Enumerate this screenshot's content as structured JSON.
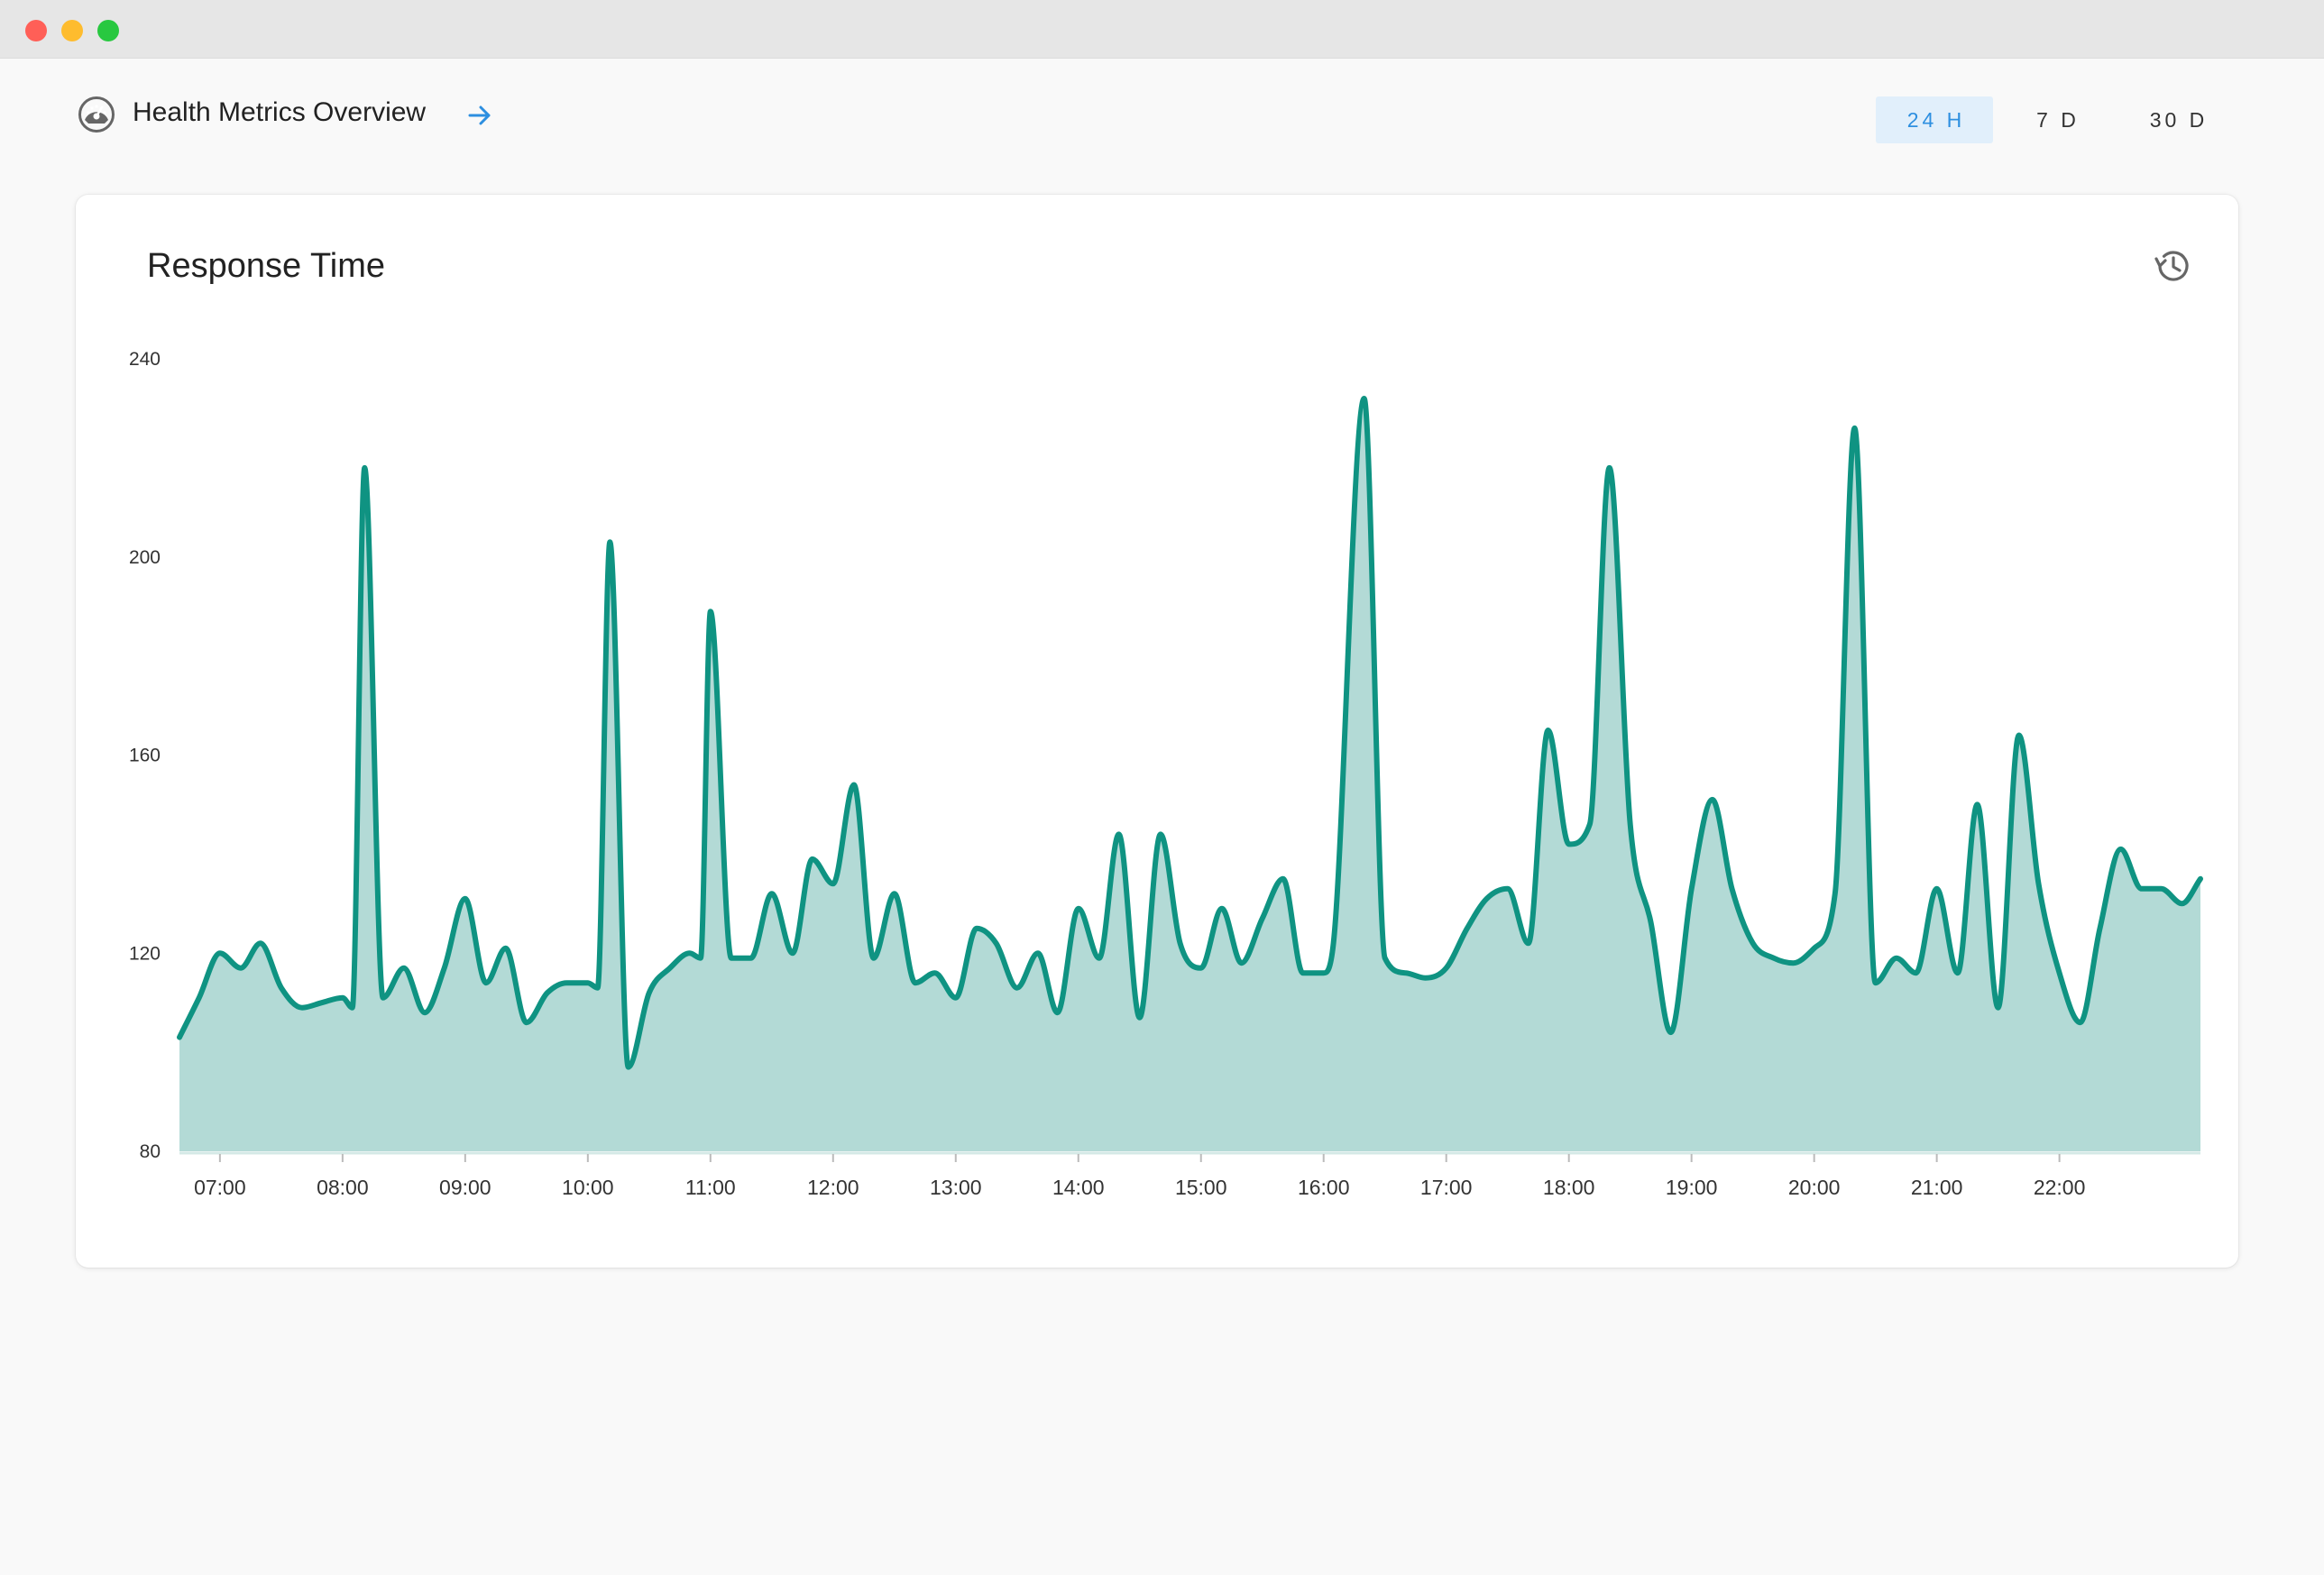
{
  "header": {
    "title": "Health Metrics Overview",
    "time_ranges": [
      {
        "label": "24 H",
        "active": true
      },
      {
        "label": "7 D",
        "active": false
      },
      {
        "label": "30 D",
        "active": false
      }
    ]
  },
  "colors": {
    "line": "#0f9382",
    "fill": "#b3dad6",
    "active_range": "#2d8fe0"
  },
  "icons": {
    "title_icon": "gauge-icon",
    "title_action": "arrow-right-icon",
    "card_action": "history-icon"
  },
  "chart_data": {
    "type": "area",
    "title": "Response Time",
    "xlabel": "",
    "ylabel": "",
    "ylim": [
      80,
      240
    ],
    "yticks": [
      80,
      120,
      160,
      200,
      240
    ],
    "x_tick_labels": [
      "07:00",
      "08:00",
      "09:00",
      "10:00",
      "11:00",
      "12:00",
      "13:00",
      "14:00",
      "15:00",
      "16:00",
      "17:00",
      "18:00",
      "19:00",
      "20:00",
      "21:00",
      "22:00"
    ],
    "x_tick_hours": [
      7,
      8,
      9,
      10,
      11,
      12,
      13,
      14,
      15,
      16,
      17,
      18,
      19,
      20,
      21,
      22
    ],
    "xlim_hours": [
      6.67,
      23.15
    ],
    "grid": false,
    "legend": "none",
    "series": [
      {
        "x_hours": [
          6.67,
          6.83,
          7.0,
          7.17,
          7.33,
          7.5,
          7.67,
          7.83,
          8.0,
          8.08,
          8.18,
          8.33,
          8.5,
          8.67,
          8.83,
          9.0,
          9.17,
          9.33,
          9.5,
          9.67,
          9.83,
          10.0,
          10.08,
          10.18,
          10.33,
          10.5,
          10.67,
          10.83,
          10.92,
          11.0,
          11.17,
          11.33,
          11.5,
          11.67,
          11.83,
          12.0,
          12.17,
          12.33,
          12.5,
          12.67,
          12.83,
          13.0,
          13.17,
          13.33,
          13.5,
          13.67,
          13.83,
          14.0,
          14.17,
          14.33,
          14.5,
          14.67,
          14.83,
          15.0,
          15.17,
          15.33,
          15.5,
          15.67,
          15.83,
          16.0,
          16.08,
          16.33,
          16.5,
          16.67,
          16.83,
          17.0,
          17.17,
          17.33,
          17.5,
          17.67,
          17.83,
          18.0,
          18.17,
          18.33,
          18.5,
          18.67,
          18.83,
          19.0,
          19.17,
          19.33,
          19.5,
          19.67,
          19.83,
          20.0,
          20.17,
          20.33,
          20.5,
          20.67,
          20.83,
          21.0,
          21.17,
          21.33,
          21.5,
          21.67,
          21.83,
          22.0,
          22.17,
          22.33,
          22.5,
          22.67,
          22.83,
          23.0,
          23.15
        ],
        "values": [
          103,
          111,
          120,
          117,
          122,
          113,
          109,
          110,
          111,
          109,
          218,
          111,
          117,
          108,
          117,
          131,
          114,
          121,
          106,
          112,
          114,
          114,
          113,
          203,
          97,
          112,
          117,
          120,
          119,
          189,
          119,
          119,
          132,
          120,
          139,
          134,
          154,
          119,
          132,
          114,
          116,
          111,
          125,
          122,
          113,
          120,
          108,
          129,
          119,
          144,
          107,
          144,
          122,
          117,
          129,
          118,
          127,
          135,
          116,
          116,
          122,
          232,
          119,
          116,
          115,
          117,
          125,
          131,
          133,
          122,
          165,
          142,
          146,
          218,
          146,
          126,
          104,
          133,
          151,
          133,
          122,
          119,
          118,
          121,
          132,
          226,
          114,
          119,
          116,
          133,
          116,
          150,
          109,
          164,
          134,
          116,
          106,
          125,
          141,
          133,
          133,
          130,
          135
        ]
      }
    ]
  }
}
